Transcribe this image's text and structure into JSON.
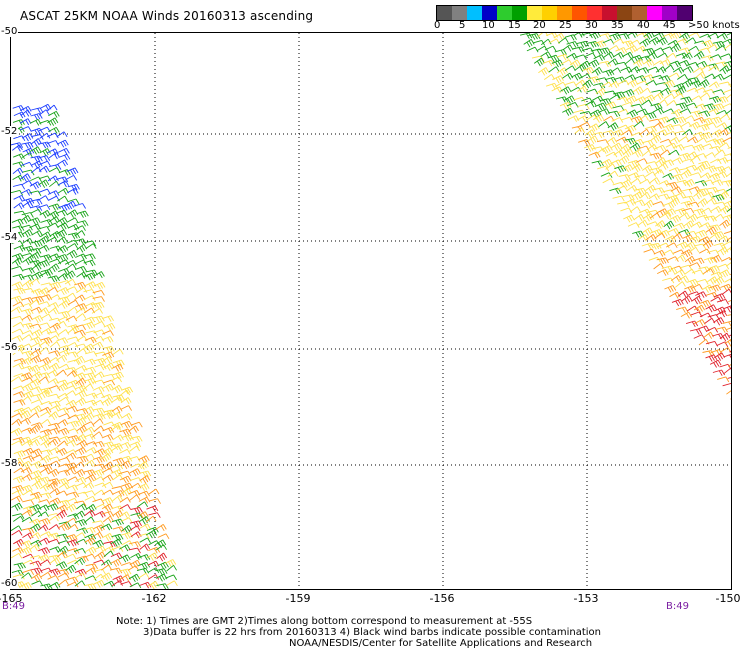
{
  "title": "ASCAT 25KM NOAA Winds 20160313 ascending",
  "legend": {
    "colors": [
      "#555555",
      "#808080",
      "#00bfff",
      "#0000c8",
      "#2ecc2e",
      "#00a000",
      "#ffeb3b",
      "#ffd000",
      "#ff9800",
      "#ff5500",
      "#ff3030",
      "#c8102e",
      "#8b4513",
      "#b06030",
      "#ff00ff",
      "#a000c8",
      "#500070"
    ],
    "labels": [
      "0",
      "5",
      "10",
      "15",
      "20",
      "25",
      "30",
      "35",
      "40",
      "45",
      ">50 knots"
    ]
  },
  "map": {
    "x_ticks": [
      "-165",
      "-162",
      "-159",
      "-156",
      "-153",
      "-150"
    ],
    "y_ticks": [
      "-50",
      "-52",
      "-54",
      "-56",
      "-58",
      "-60"
    ],
    "lon_range": [
      -165,
      -150
    ],
    "lat_range": [
      -50,
      -60
    ]
  },
  "time_labels": {
    "left": "B:49",
    "right": "B:49"
  },
  "notes": {
    "line1": "Note: 1) Times are GMT 2)Times along bottom correspond to measurement at -55S",
    "line2": "3)Data buffer is 22 hrs from 20160313 4) Black wind barbs indicate possible contamination",
    "line3": "NOAA/NESDIS/Center for Satellite Applications and Research"
  },
  "colors": {
    "grid": "#000000",
    "barb_yellow": "#ffe14d",
    "barb_orange": "#ff9a1f",
    "barb_red": "#e0202a",
    "barb_green": "#16a316",
    "barb_blue": "#1a3cff",
    "time_label": "#7b1fa2"
  }
}
